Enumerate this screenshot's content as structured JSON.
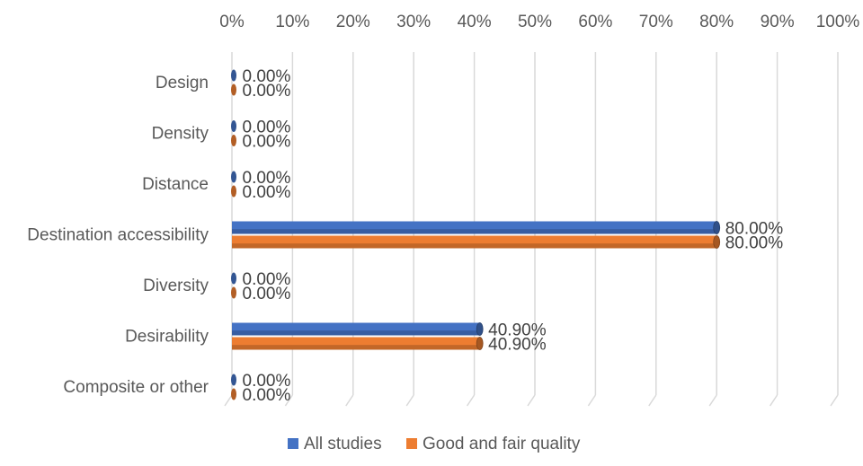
{
  "chart_data": {
    "type": "bar",
    "orientation": "horizontal",
    "categories": [
      "Design",
      "Density",
      "Distance",
      "Destination accessibility",
      "Diversity",
      "Desirability",
      "Composite or other"
    ],
    "series": [
      {
        "name": "All studies",
        "color": "#4472C4",
        "values": [
          0,
          0,
          0,
          80,
          0,
          40.9,
          0
        ],
        "labels": [
          "0.00%",
          "0.00%",
          "0.00%",
          "80.00%",
          "0.00%",
          "40.90%",
          "0.00%"
        ]
      },
      {
        "name": "Good and fair quality",
        "color": "#ED7D31",
        "values": [
          0,
          0,
          0,
          80,
          0,
          40.9,
          0
        ],
        "labels": [
          "0.00%",
          "0.00%",
          "0.00%",
          "80.00%",
          "0.00%",
          "40.90%",
          "0.00%"
        ]
      }
    ],
    "x_ticks": [
      "0%",
      "10%",
      "20%",
      "30%",
      "40%",
      "50%",
      "60%",
      "70%",
      "80%",
      "90%",
      "100%"
    ],
    "xlim": [
      0,
      100
    ],
    "x_axis_position": "top",
    "grid": true,
    "legend_position": "bottom",
    "style": "3d"
  }
}
